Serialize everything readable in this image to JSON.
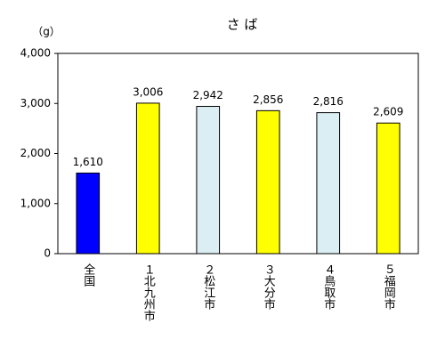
{
  "chart_data": {
    "type": "bar",
    "title": "さ ば",
    "y_unit": "（g）",
    "categories": [
      "全国",
      "１北九州市",
      "２松江市",
      "３大分市",
      "４鳥取市",
      "５福岡市"
    ],
    "values": [
      1610,
      3006,
      2942,
      2856,
      2816,
      2609
    ],
    "value_labels": [
      "1,610",
      "3,006",
      "2,942",
      "2,856",
      "2,816",
      "2,609"
    ],
    "colors": [
      "#0000ff",
      "#ffff00",
      "#daeef3",
      "#ffff00",
      "#daeef3",
      "#ffff00"
    ],
    "ylim": [
      0,
      4000
    ],
    "yticks": [
      0,
      {
        "value": 1000,
        "label": "1,000"
      },
      {
        "value": 2000,
        "label": "2,000"
      },
      {
        "value": 3000,
        "label": "3,000"
      },
      {
        "value": 4000,
        "label": "4,000"
      }
    ],
    "grid": false
  }
}
